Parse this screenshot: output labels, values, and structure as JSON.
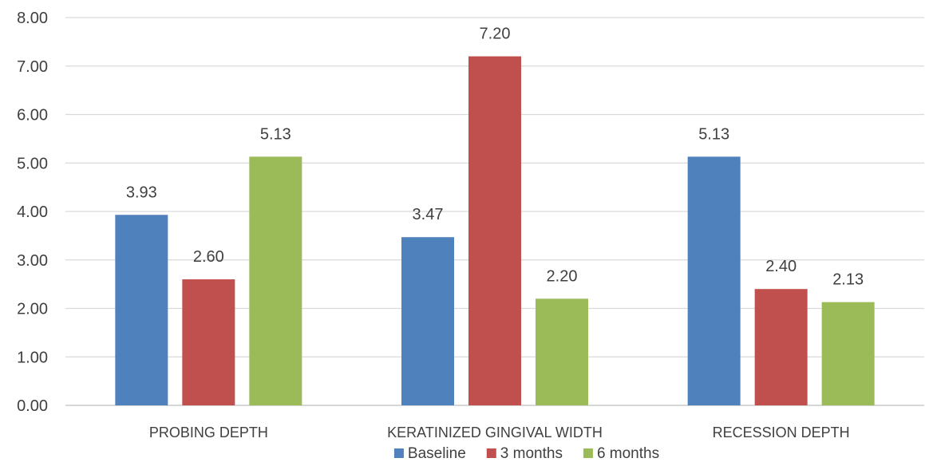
{
  "chart_data": {
    "type": "bar",
    "categories": [
      "PROBING DEPTH",
      "KERATINIZED GINGIVAL WIDTH",
      "RECESSION DEPTH"
    ],
    "series": [
      {
        "name": "Baseline",
        "color": "#4f81bd",
        "values": [
          3.93,
          3.47,
          5.13
        ],
        "labels": [
          "3.93",
          "3.47",
          "5.13"
        ]
      },
      {
        "name": "3  months",
        "color": "#c0504d",
        "values": [
          2.6,
          7.2,
          2.4
        ],
        "labels": [
          "2.60",
          "7.20",
          "2.40"
        ]
      },
      {
        "name": "6 months",
        "color": "#9bbb59",
        "values": [
          5.13,
          2.2,
          2.13
        ],
        "labels": [
          "5.13",
          "2.20",
          "2.13"
        ]
      }
    ],
    "yticks": [
      "0.00",
      "1.00",
      "2.00",
      "3.00",
      "4.00",
      "5.00",
      "6.00",
      "7.00",
      "8.00"
    ],
    "ylim": [
      0,
      8
    ],
    "grid": true,
    "legend_position": "bottom"
  }
}
